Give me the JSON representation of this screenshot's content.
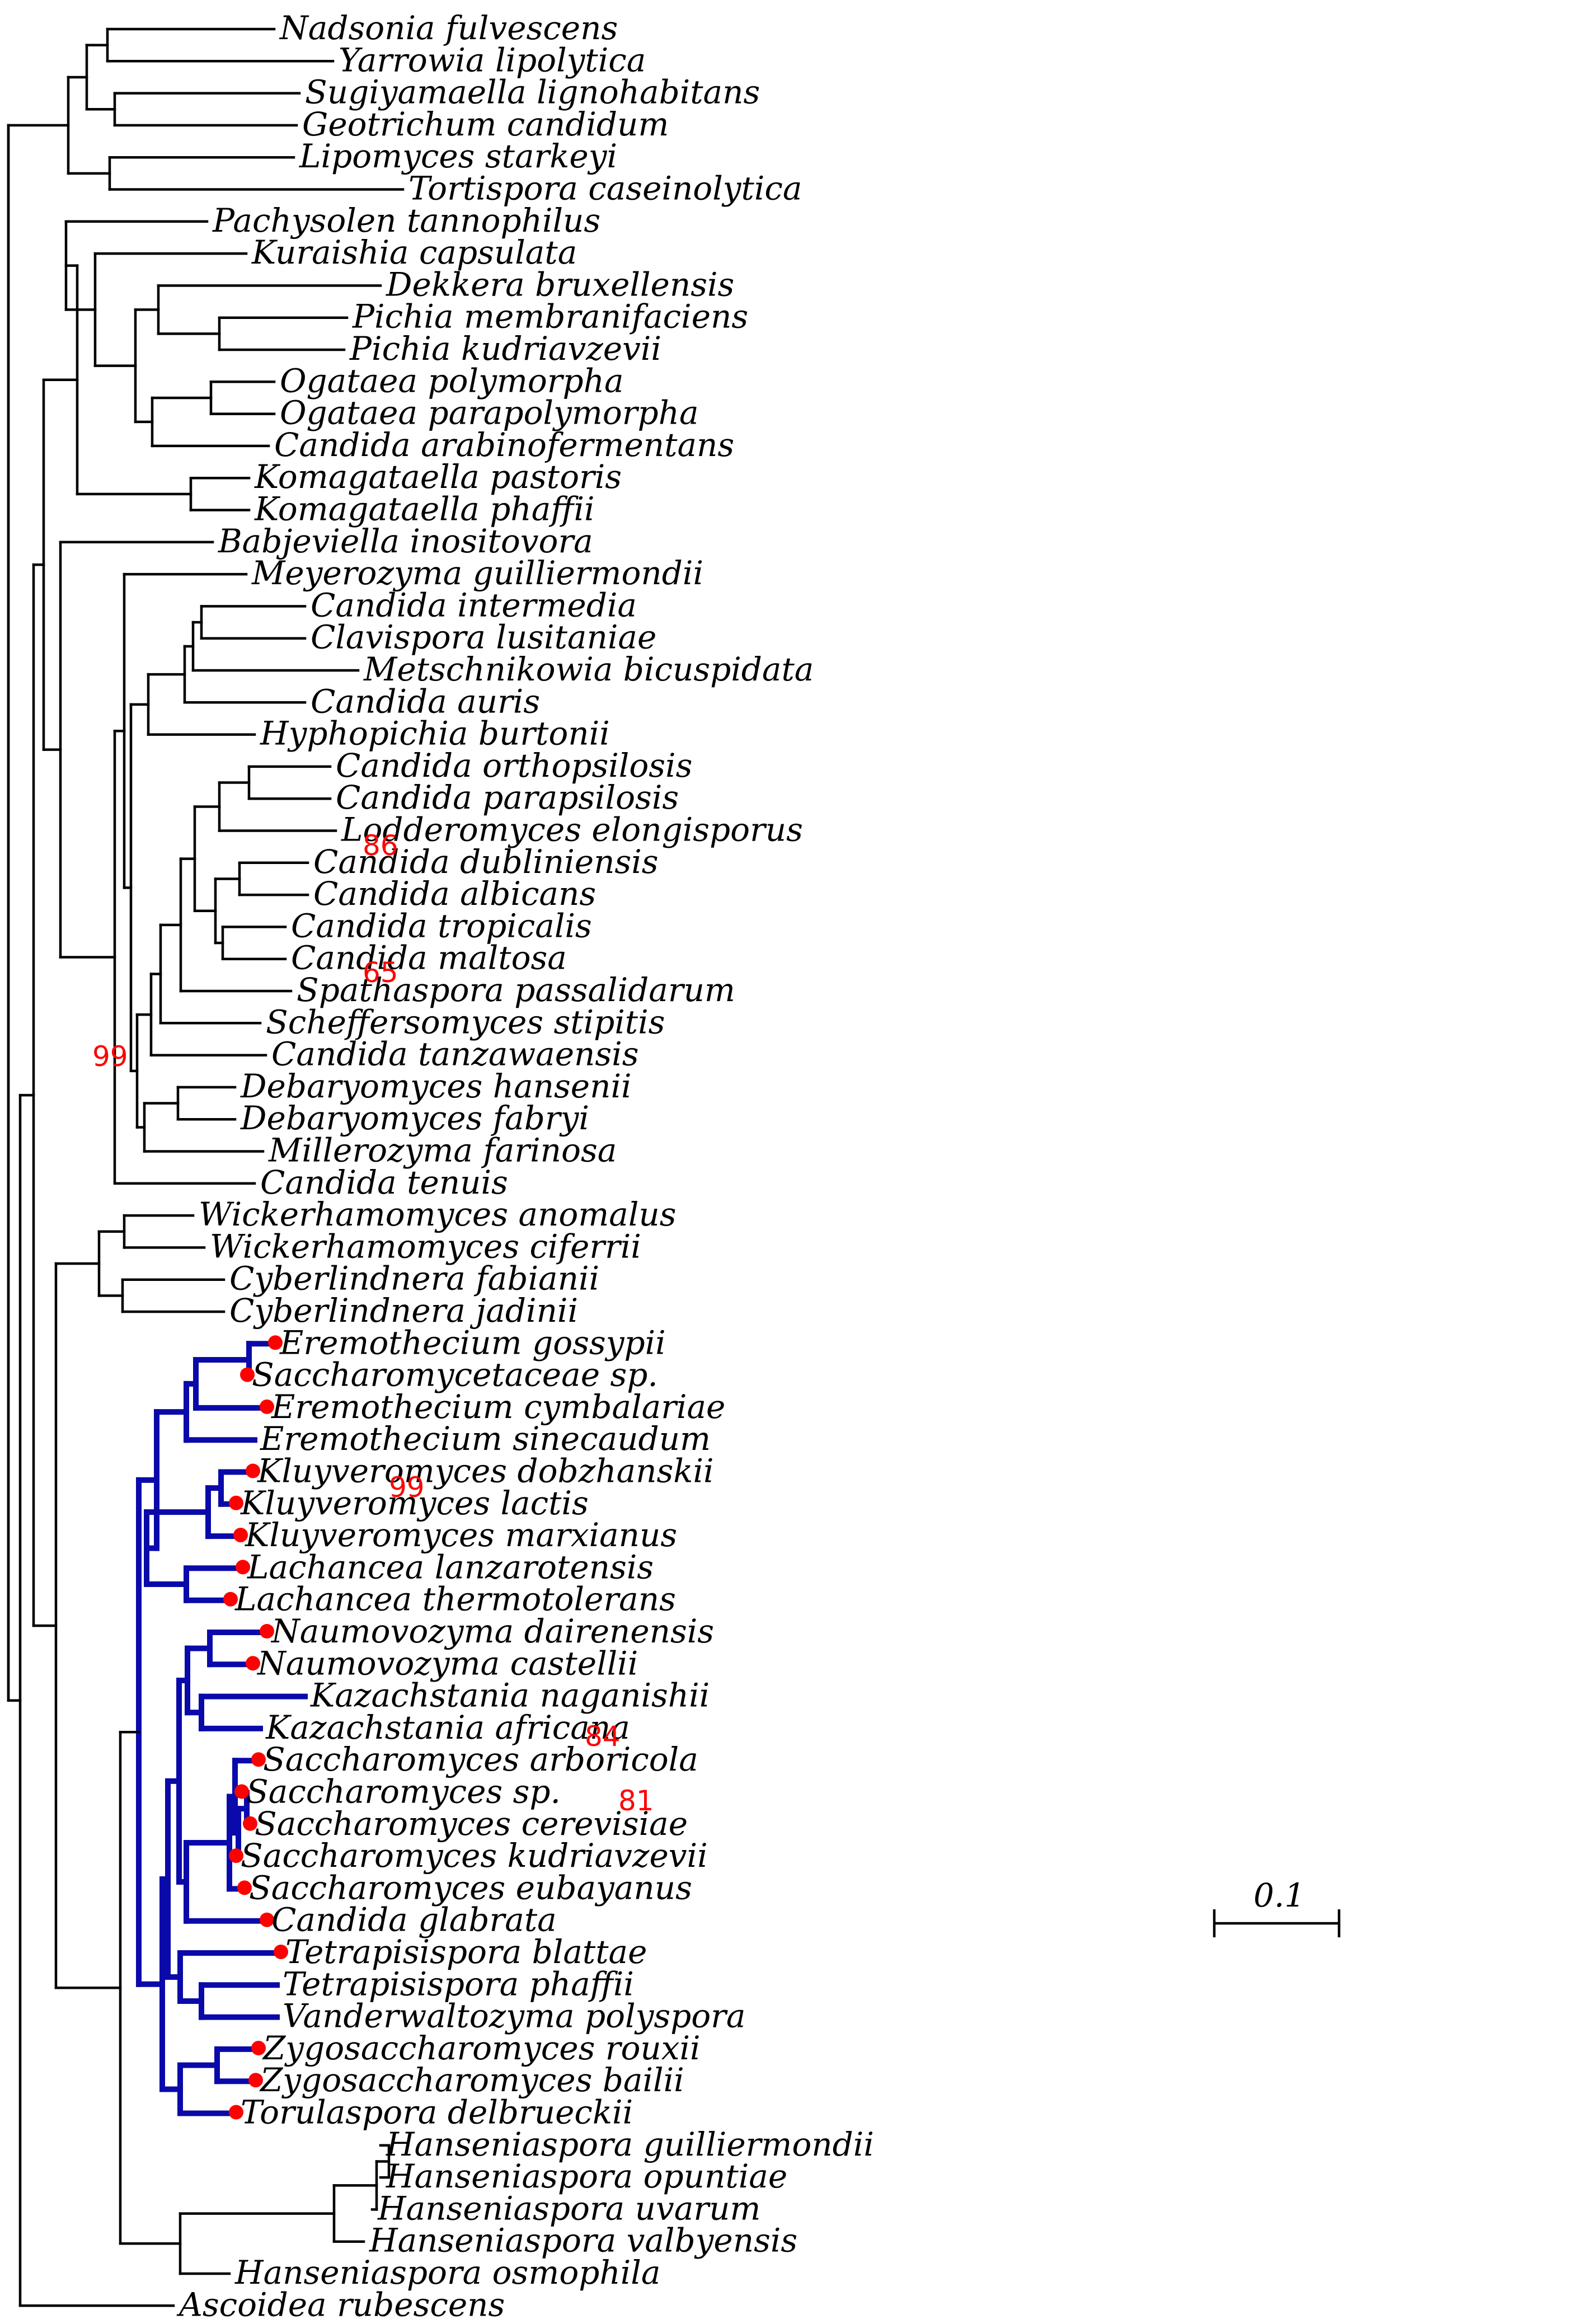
{
  "figure": {
    "type": "phylogenetic_tree",
    "highlight_color": "#0a0aaa",
    "marker_color": "#ff0000",
    "scale": {
      "label": "0.1",
      "value": 0.1
    }
  },
  "taxa": [
    "Nadsonia fulvescens",
    "Yarrowia lipolytica",
    "Sugiyamaella lignohabitans",
    "Geotrichum candidum",
    "Lipomyces starkeyi",
    "Tortispora caseinolytica",
    "Pachysolen tannophilus",
    "Kuraishia capsulata",
    "Dekkera bruxellensis",
    "Pichia membranifaciens",
    "Pichia kudriavzevii",
    "Ogataea polymorpha",
    "Ogataea parapolymorpha",
    "Candida arabinofermentans",
    "Komagataella pastoris",
    "Komagataella phaffii",
    "Babjeviella inositovora",
    "Meyerozyma guilliermondii",
    "Candida intermedia",
    "Clavispora lusitaniae",
    "Metschnikowia bicuspidata",
    "Candida auris",
    "Hyphopichia burtonii",
    "Candida orthopsilosis",
    "Candida parapsilosis",
    "Lodderomyces elongisporus",
    "Candida dubliniensis",
    "Candida albicans",
    "Candida tropicalis",
    "Candida maltosa",
    "Spathaspora passalidarum",
    "Scheffersomyces stipitis",
    "Candida tanzawaensis",
    "Debaryomyces hansenii",
    "Debaryomyces fabryi",
    "Millerozyma farinosa",
    "Candida tenuis",
    "Wickerhamomyces anomalus",
    "Wickerhamomyces ciferrii",
    "Cyberlindnera fabianii",
    "Cyberlindnera jadinii",
    "Eremothecium gossypii",
    "Saccharomycetaceae sp.",
    "Eremothecium cymbalariae",
    "Eremothecium sinecaudum",
    "Kluyveromyces dobzhanskii",
    "Kluyveromyces lactis",
    "Kluyveromyces marxianus",
    "Lachancea lanzarotensis",
    "Lachancea thermotolerans",
    "Naumovozyma dairenensis",
    "Naumovozyma castellii",
    "Kazachstania naganishii",
    "Kazachstania africana",
    "Saccharomyces arboricola",
    "Saccharomyces sp.",
    "Saccharomyces cerevisiae",
    "Saccharomyces kudriavzevii",
    "Saccharomyces eubayanus",
    "Candida glabrata",
    "Tetrapisispora blattae",
    "Tetrapisispora phaffii",
    "Vanderwaltozyma polyspora",
    "Zygosaccharomyces rouxii",
    "Zygosaccharomyces bailii",
    "Torulaspora delbrueckii",
    "Hanseniaspora guilliermondii",
    "Hanseniaspora opuntiae",
    "Hanseniaspora uvarum",
    "Hanseniaspora valbyensis",
    "Hanseniaspora osmophila",
    "Ascoidea rubescens"
  ],
  "marked_taxa": [
    "Eremothecium gossypii",
    "Saccharomycetaceae sp.",
    "Eremothecium cymbalariae",
    "Kluyveromyces dobzhanskii",
    "Kluyveromyces lactis",
    "Kluyveromyces marxianus",
    "Lachancea lanzarotensis",
    "Lachancea thermotolerans",
    "Naumovozyma dairenensis",
    "Naumovozyma castellii",
    "Saccharomyces arboricola",
    "Saccharomyces sp.",
    "Saccharomyces cerevisiae",
    "Saccharomyces kudriavzevii",
    "Saccharomyces eubayanus",
    "Candida glabrata",
    "Tetrapisispora blattae",
    "Zygosaccharomyces rouxii",
    "Zygosaccharomyces bailii",
    "Torulaspora delbrueckii"
  ],
  "bootstrap_labels": [
    "99",
    "86",
    "65",
    "99",
    "84",
    "81"
  ]
}
